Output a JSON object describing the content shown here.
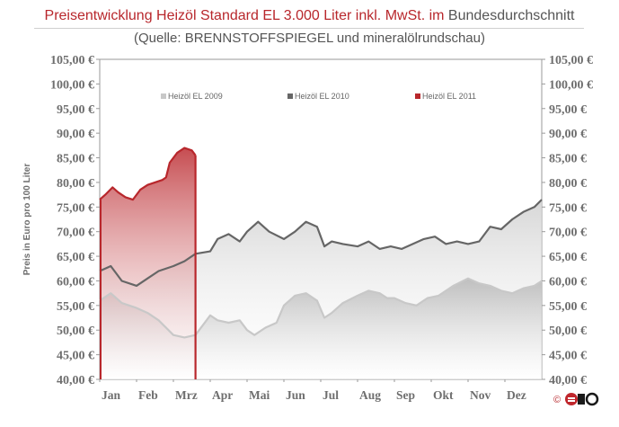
{
  "header": {
    "title_red": "Preisentwicklung  Heizöl  Standard  EL  3.000  Liter  inkl.  MwSt.  im",
    "title_gray": "Bundesdurchschnitt",
    "source": "(Quelle:  BRENNSTOFFSPIEGEL  und  mineralölrundschau)"
  },
  "colors": {
    "red": "#b8272c",
    "gray": "#666666",
    "lightgray": "#c8c8c8"
  },
  "logo": {
    "copyright": "©"
  },
  "chart_data": {
    "type": "area",
    "ylabel": "Preis in Euro pro 100 Liter",
    "xlabel": "",
    "ylim": [
      40,
      105
    ],
    "y_ticks": [
      "40,00 €",
      "45,00 €",
      "50,00 €",
      "55,00 €",
      "60,00 €",
      "65,00 €",
      "70,00 €",
      "75,00 €",
      "80,00 €",
      "85,00 €",
      "90,00 €",
      "95,00 €",
      "100,00 €",
      "105,00 €"
    ],
    "categories": [
      "Jan",
      "Feb",
      "Mrz",
      "Apr",
      "Mai",
      "Jun",
      "Jul",
      "Aug",
      "Sep",
      "Okt",
      "Nov",
      "Dez"
    ],
    "x_unit": "month index (0 = Jan start, 12 = Dez end)",
    "legend_position": "top",
    "grid": false,
    "series": [
      {
        "name": "Heizöl EL 2009",
        "color": "#c8c8c8",
        "points": [
          [
            0,
            56
          ],
          [
            0.3,
            57.5
          ],
          [
            0.6,
            55.5
          ],
          [
            1,
            54.5
          ],
          [
            1.3,
            53.5
          ],
          [
            1.6,
            52
          ],
          [
            2,
            49
          ],
          [
            2.3,
            48.5
          ],
          [
            2.6,
            49
          ],
          [
            3,
            53
          ],
          [
            3.2,
            52
          ],
          [
            3.5,
            51.5
          ],
          [
            3.8,
            52
          ],
          [
            4,
            50
          ],
          [
            4.2,
            49
          ],
          [
            4.5,
            50.5
          ],
          [
            4.8,
            51.5
          ],
          [
            5,
            55
          ],
          [
            5.3,
            57
          ],
          [
            5.6,
            57.5
          ],
          [
            5.9,
            56
          ],
          [
            6.1,
            52.5
          ],
          [
            6.3,
            53.5
          ],
          [
            6.6,
            55.5
          ],
          [
            7,
            57
          ],
          [
            7.3,
            58
          ],
          [
            7.6,
            57.5
          ],
          [
            7.8,
            56.5
          ],
          [
            8,
            56.5
          ],
          [
            8.3,
            55.5
          ],
          [
            8.6,
            55
          ],
          [
            8.9,
            56.5
          ],
          [
            9.2,
            57
          ],
          [
            9.6,
            59
          ],
          [
            10,
            60.5
          ],
          [
            10.3,
            59.5
          ],
          [
            10.6,
            59
          ],
          [
            10.9,
            58
          ],
          [
            11.2,
            57.5
          ],
          [
            11.5,
            58.5
          ],
          [
            11.8,
            59
          ],
          [
            12,
            60
          ]
        ]
      },
      {
        "name": "Heizöl EL 2010",
        "color": "#666666",
        "points": [
          [
            0,
            62
          ],
          [
            0.3,
            63
          ],
          [
            0.6,
            60
          ],
          [
            1,
            59
          ],
          [
            1.3,
            60.5
          ],
          [
            1.6,
            62
          ],
          [
            2,
            63
          ],
          [
            2.3,
            64
          ],
          [
            2.6,
            65.5
          ],
          [
            3,
            66
          ],
          [
            3.2,
            68.5
          ],
          [
            3.5,
            69.5
          ],
          [
            3.8,
            68
          ],
          [
            4,
            70
          ],
          [
            4.3,
            72
          ],
          [
            4.6,
            70
          ],
          [
            5,
            68.5
          ],
          [
            5.3,
            70
          ],
          [
            5.6,
            72
          ],
          [
            5.9,
            71
          ],
          [
            6.1,
            67
          ],
          [
            6.3,
            68
          ],
          [
            6.6,
            67.5
          ],
          [
            7,
            67
          ],
          [
            7.3,
            68
          ],
          [
            7.6,
            66.5
          ],
          [
            7.9,
            67
          ],
          [
            8.2,
            66.5
          ],
          [
            8.5,
            67.5
          ],
          [
            8.8,
            68.5
          ],
          [
            9.1,
            69
          ],
          [
            9.4,
            67.5
          ],
          [
            9.7,
            68
          ],
          [
            10,
            67.5
          ],
          [
            10.3,
            68
          ],
          [
            10.6,
            71
          ],
          [
            10.9,
            70.5
          ],
          [
            11.2,
            72.5
          ],
          [
            11.5,
            74
          ],
          [
            11.8,
            75
          ],
          [
            12,
            76.5
          ]
        ]
      },
      {
        "name": "Heizöl EL 2011",
        "color": "#b8272c",
        "points": [
          [
            0,
            76.5
          ],
          [
            0.15,
            77.5
          ],
          [
            0.35,
            79
          ],
          [
            0.5,
            78
          ],
          [
            0.7,
            77
          ],
          [
            0.9,
            76.5
          ],
          [
            1.1,
            78.5
          ],
          [
            1.3,
            79.5
          ],
          [
            1.5,
            80
          ],
          [
            1.7,
            80.5
          ],
          [
            1.8,
            81
          ],
          [
            1.9,
            84
          ],
          [
            2.1,
            86
          ],
          [
            2.3,
            87
          ],
          [
            2.5,
            86.5
          ],
          [
            2.6,
            85.5
          ]
        ]
      }
    ]
  }
}
